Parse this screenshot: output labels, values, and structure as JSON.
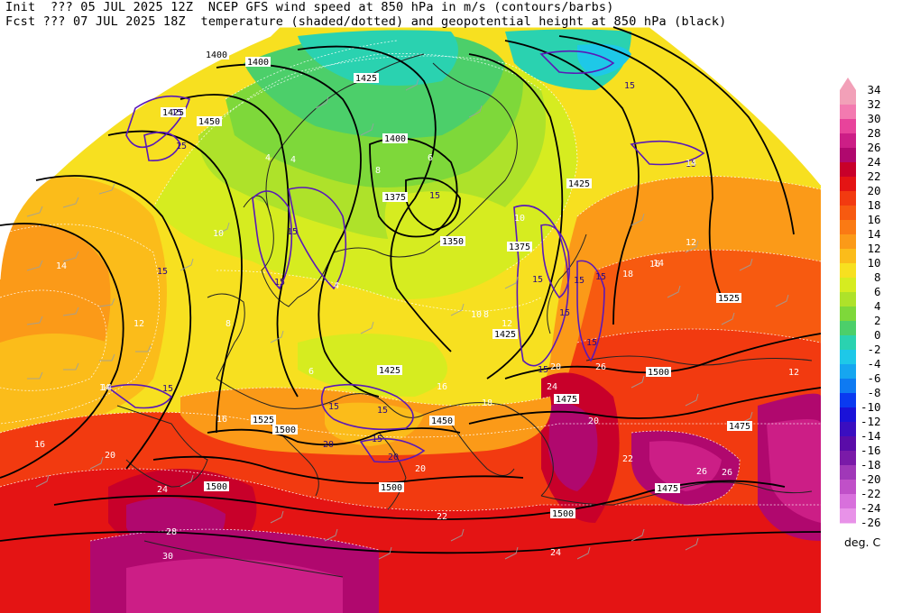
{
  "header": {
    "line1_left": "Init  ??? 05 JUL 2025 12Z",
    "line1_right": "NCEP GFS wind speed at 850 hPa in m/s (contours/barbs)",
    "line2_left": "Fcst ??? 07 JUL 2025 18Z",
    "line2_right": "temperature (shaded/dotted) and geopotential height at 850 hPa (black)"
  },
  "colorbar": {
    "units": "deg. C",
    "levels": [
      {
        "label": "34",
        "color": "#f2a0b8"
      },
      {
        "label": "32",
        "color": "#f37ab0"
      },
      {
        "label": "30",
        "color": "#e8439b"
      },
      {
        "label": "28",
        "color": "#cc1e86"
      },
      {
        "label": "26",
        "color": "#b0086e"
      },
      {
        "label": "24",
        "color": "#c8002a"
      },
      {
        "label": "22",
        "color": "#e41414"
      },
      {
        "label": "20",
        "color": "#f23a10"
      },
      {
        "label": "18",
        "color": "#f75a10"
      },
      {
        "label": "16",
        "color": "#fa7a14"
      },
      {
        "label": "14",
        "color": "#fb9a18"
      },
      {
        "label": "12",
        "color": "#fbbc1a"
      },
      {
        "label": "10",
        "color": "#f7e020"
      },
      {
        "label": "8",
        "color": "#d6ec20"
      },
      {
        "label": "6",
        "color": "#aee22a"
      },
      {
        "label": "4",
        "color": "#7ed83a"
      },
      {
        "label": "2",
        "color": "#4ccf6a"
      },
      {
        "label": "0",
        "color": "#2ad2b0"
      },
      {
        "label": "-2",
        "color": "#1ec8e8"
      },
      {
        "label": "-4",
        "color": "#16a6f0"
      },
      {
        "label": "-6",
        "color": "#0e7af2"
      },
      {
        "label": "-8",
        "color": "#0a3af0"
      },
      {
        "label": "-10",
        "color": "#1a12d8"
      },
      {
        "label": "-12",
        "color": "#3a0ec0"
      },
      {
        "label": "-14",
        "color": "#5a0ca8"
      },
      {
        "label": "-16",
        "color": "#7a1aa8"
      },
      {
        "label": "-18",
        "color": "#a038b8"
      },
      {
        "label": "-20",
        "color": "#c050c8"
      },
      {
        "label": "-22",
        "color": "#d870dc"
      },
      {
        "label": "-24",
        "color": "#e892e8"
      },
      {
        "label": "-26",
        "color": "#f2b8f0"
      }
    ]
  },
  "map": {
    "height_labels": [
      "1400",
      "1425",
      "1450",
      "1425",
      "1400",
      "1375",
      "1350",
      "1375",
      "1425",
      "1500",
      "1525",
      "1500",
      "1475",
      "1450",
      "1425",
      "1500",
      "1525",
      "1475",
      "1475",
      "1500",
      "1500",
      "1425",
      "1400"
    ],
    "wind_labels": [
      "15",
      "15",
      "15",
      "15",
      "15",
      "15",
      "15",
      "15",
      "15",
      "20",
      "15",
      "15",
      "20",
      "15",
      "15",
      "15",
      "15",
      "15",
      "15",
      "15"
    ],
    "temp_labels": [
      "14",
      "12",
      "14",
      "16",
      "20",
      "24",
      "28",
      "30",
      "10",
      "8",
      "6",
      "4",
      "4",
      "6",
      "8",
      "10",
      "12",
      "14",
      "16",
      "18",
      "20",
      "22",
      "24",
      "26",
      "26",
      "22",
      "20",
      "18",
      "16",
      "12",
      "14",
      "20",
      "24",
      "26",
      "16",
      "14",
      "12",
      "10",
      "8",
      "4"
    ]
  }
}
